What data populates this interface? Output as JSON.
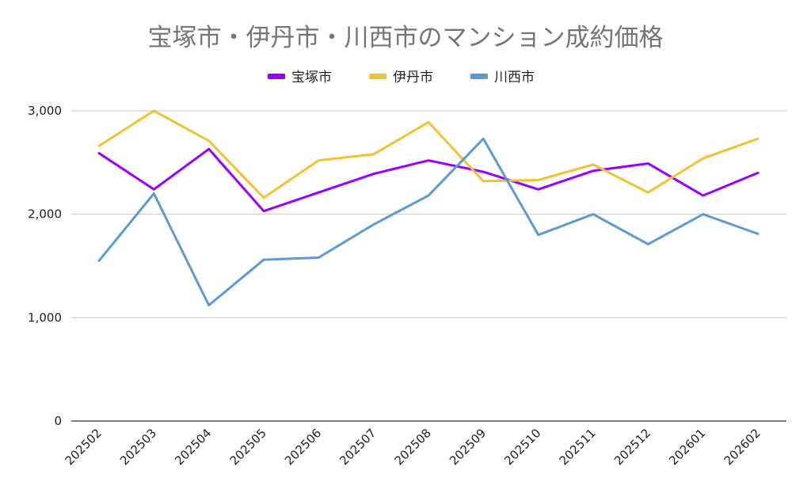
{
  "chart_data": {
    "type": "line",
    "title": "宝塚市・伊丹市・川西市のマンション成約価格",
    "xlabel": "",
    "ylabel": "",
    "ylim": [
      0,
      3000
    ],
    "yticks": [
      0,
      1000,
      2000,
      3000
    ],
    "ytick_labels": [
      "0",
      "1,000",
      "2,000",
      "3,000"
    ],
    "grid": true,
    "legend_position": "top-center",
    "categories": [
      "202502",
      "202503",
      "202504",
      "202505",
      "202506",
      "202507",
      "202508",
      "202509",
      "202510",
      "202511",
      "202512",
      "202601",
      "202602"
    ],
    "series": [
      {
        "name": "宝塚市",
        "color": "#9900ff",
        "values": [
          2590,
          2240,
          2630,
          2030,
          2210,
          2390,
          2520,
          2410,
          2240,
          2420,
          2490,
          2180,
          2400
        ]
      },
      {
        "name": "伊丹市",
        "color": "#f1c232",
        "values": [
          2660,
          3000,
          2710,
          2160,
          2520,
          2580,
          2890,
          2320,
          2330,
          2480,
          2210,
          2540,
          2730
        ]
      },
      {
        "name": "川西市",
        "color": "#5b9bd5",
        "values": [
          1550,
          2200,
          1120,
          1560,
          1580,
          1900,
          2180,
          2730,
          1800,
          2000,
          1710,
          2000,
          1810
        ]
      }
    ]
  }
}
